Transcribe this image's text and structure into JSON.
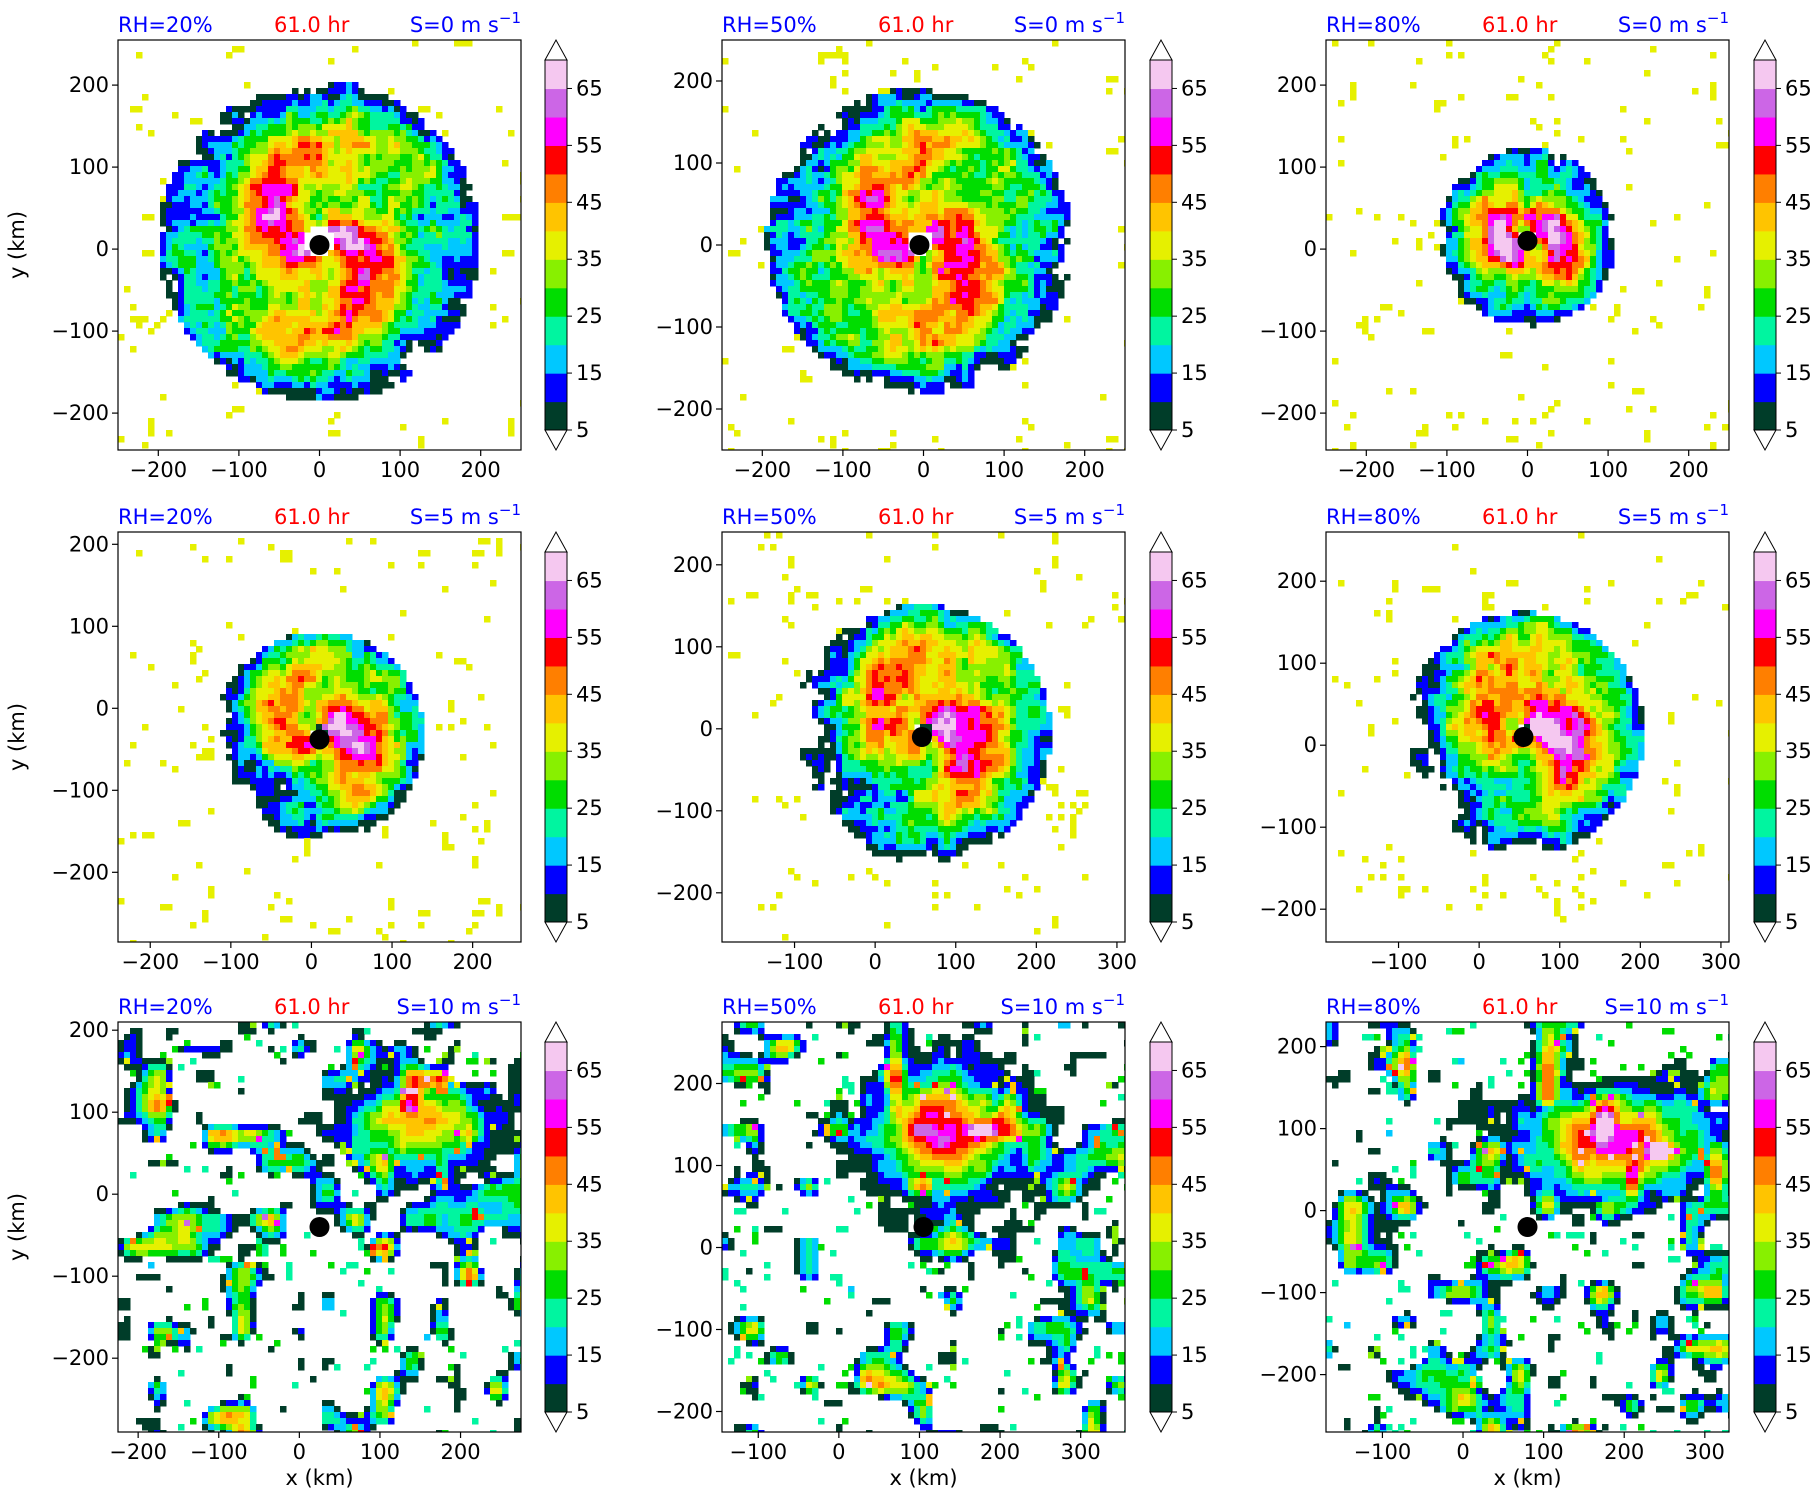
{
  "colorbar": {
    "levels": [
      5,
      10,
      15,
      20,
      25,
      30,
      35,
      40,
      45,
      50,
      55,
      60,
      65,
      70
    ],
    "tick_labels": [
      "5",
      "15",
      "25",
      "35",
      "45",
      "55",
      "65"
    ],
    "colors": [
      "#003d29",
      "#0000ff",
      "#00c8ff",
      "#00f5a0",
      "#00dd00",
      "#88f000",
      "#e6f000",
      "#ffc400",
      "#ff7f00",
      "#ff0000",
      "#ff00ff",
      "#cc66e6",
      "#f5c8f0"
    ]
  },
  "storm_marker_color": "#000000",
  "chart_data": [
    {
      "type": "heatmap",
      "rh_label": "RH=20%",
      "time_label": "61.0 hr",
      "shear_label": "S=0 m s",
      "shear_sup": "−1",
      "xlim": [
        -250,
        250
      ],
      "ylim": [
        -245,
        255
      ],
      "xticks": [
        -200,
        -100,
        0,
        100,
        200
      ],
      "yticks": [
        -200,
        -100,
        0,
        100,
        200
      ],
      "xtick_labels": [
        "−200",
        "−100",
        "0",
        "100",
        "200"
      ],
      "ytick_labels": [
        "−200",
        "−100",
        "0",
        "100",
        "200"
      ],
      "xlabel": "",
      "ylabel": "y (km)",
      "center": [
        0,
        5
      ],
      "core_extent": 200,
      "ring_radius": 0,
      "inner_radius": 18,
      "spiral": true
    },
    {
      "type": "heatmap",
      "rh_label": "RH=50%",
      "time_label": "61.0 hr",
      "shear_label": "S=0 m s",
      "shear_sup": "−1",
      "xlim": [
        -250,
        250
      ],
      "ylim": [
        -250,
        250
      ],
      "xticks": [
        -200,
        -100,
        0,
        100,
        200
      ],
      "yticks": [
        -200,
        -100,
        0,
        100,
        200
      ],
      "xtick_labels": [
        "−200",
        "−100",
        "0",
        "100",
        "200"
      ],
      "ytick_labels": [
        "−200",
        "−100",
        "0",
        "100",
        "200"
      ],
      "xlabel": "",
      "ylabel": "",
      "center": [
        -5,
        0
      ],
      "core_extent": 190,
      "ring_radius": 0,
      "inner_radius": 15,
      "spiral": true
    },
    {
      "type": "heatmap",
      "rh_label": "RH=80%",
      "time_label": "61.0 hr",
      "shear_label": "S=0 m s",
      "shear_sup": "−1",
      "xlim": [
        -250,
        250
      ],
      "ylim": [
        -245,
        255
      ],
      "xticks": [
        -200,
        -100,
        0,
        100,
        200
      ],
      "yticks": [
        -200,
        -100,
        0,
        100,
        200
      ],
      "xtick_labels": [
        "−200",
        "−100",
        "0",
        "100",
        "200"
      ],
      "ytick_labels": [
        "−200",
        "−100",
        "0",
        "100",
        "200"
      ],
      "xlabel": "",
      "ylabel": "",
      "center": [
        0,
        10
      ],
      "core_extent": 110,
      "ring_radius": 35,
      "inner_radius": 10,
      "spiral": true
    },
    {
      "type": "heatmap",
      "rh_label": "RH=20%",
      "time_label": "61.0 hr",
      "shear_label": "S=5 m s",
      "shear_sup": "−1",
      "xlim": [
        -240,
        260
      ],
      "ylim": [
        -285,
        215
      ],
      "xticks": [
        -200,
        -100,
        0,
        100,
        200
      ],
      "yticks": [
        -200,
        -100,
        0,
        100,
        200
      ],
      "xtick_labels": [
        "−200",
        "−100",
        "0",
        "100",
        "200"
      ],
      "ytick_labels": [
        "−200",
        "−100",
        "0",
        "100",
        "200"
      ],
      "xlabel": "",
      "ylabel": "y (km)",
      "center": [
        10,
        -38
      ],
      "core_extent": 130,
      "ring_radius": 0,
      "inner_radius": 12,
      "spiral": true
    },
    {
      "type": "heatmap",
      "rh_label": "RH=50%",
      "time_label": "61.0 hr",
      "shear_label": "S=5 m s",
      "shear_sup": "−1",
      "xlim": [
        -190,
        310
      ],
      "ylim": [
        -260,
        240
      ],
      "xticks": [
        -100,
        0,
        100,
        200,
        300
      ],
      "yticks": [
        -200,
        -100,
        0,
        100,
        200
      ],
      "xtick_labels": [
        "−100",
        "0",
        "100",
        "200",
        "300"
      ],
      "ytick_labels": [
        "−200",
        "−100",
        "0",
        "100",
        "200"
      ],
      "xlabel": "",
      "ylabel": "",
      "center": [
        58,
        -10
      ],
      "core_extent": 160,
      "ring_radius": 0,
      "inner_radius": 12,
      "spiral": true
    },
    {
      "type": "heatmap",
      "rh_label": "RH=80%",
      "time_label": "61.0 hr",
      "shear_label": "S=5 m s",
      "shear_sup": "−1",
      "xlim": [
        -190,
        310
      ],
      "ylim": [
        -240,
        260
      ],
      "xticks": [
        -100,
        0,
        100,
        200,
        300
      ],
      "yticks": [
        -200,
        -100,
        0,
        100,
        200
      ],
      "xtick_labels": [
        "−100",
        "0",
        "100",
        "200",
        "300"
      ],
      "ytick_labels": [
        "−200",
        "−100",
        "0",
        "100",
        "200"
      ],
      "xlabel": "",
      "ylabel": "",
      "center": [
        55,
        10
      ],
      "core_extent": 150,
      "ring_radius": 0,
      "inner_radius": 10,
      "spiral": true
    },
    {
      "type": "heatmap",
      "rh_label": "RH=20%",
      "time_label": "61.0 hr",
      "shear_label": "S=10 m s",
      "shear_sup": "−1",
      "xlim": [
        -225,
        275
      ],
      "ylim": [
        -290,
        210
      ],
      "xticks": [
        -200,
        -100,
        0,
        100,
        200
      ],
      "yticks": [
        -200,
        -100,
        0,
        100,
        200
      ],
      "xtick_labels": [
        "−200",
        "−100",
        "0",
        "100",
        "200"
      ],
      "ytick_labels": [
        "−200",
        "−100",
        "0",
        "100",
        "200"
      ],
      "xlabel": "x (km)",
      "ylabel": "y (km)",
      "center": [
        25,
        -40
      ],
      "core_extent": 0,
      "ring_radius": 0,
      "inner_radius": 0,
      "spiral": false
    },
    {
      "type": "heatmap",
      "rh_label": "RH=50%",
      "time_label": "61.0 hr",
      "shear_label": "S=10 m s",
      "shear_sup": "−1",
      "xlim": [
        -145,
        355
      ],
      "ylim": [
        -225,
        275
      ],
      "xticks": [
        -100,
        0,
        100,
        200,
        300
      ],
      "yticks": [
        -200,
        -100,
        0,
        100,
        200
      ],
      "xtick_labels": [
        "−100",
        "0",
        "100",
        "200",
        "300"
      ],
      "ytick_labels": [
        "−200",
        "−100",
        "0",
        "100",
        "200"
      ],
      "xlabel": "x (km)",
      "ylabel": "",
      "center": [
        105,
        25
      ],
      "core_extent": 0,
      "ring_radius": 0,
      "inner_radius": 0,
      "spiral": false
    },
    {
      "type": "heatmap",
      "rh_label": "RH=80%",
      "time_label": "61.0 hr",
      "shear_label": "S=10 m s",
      "shear_sup": "−1",
      "xlim": [
        -170,
        330
      ],
      "ylim": [
        -270,
        230
      ],
      "xticks": [
        -100,
        0,
        100,
        200,
        300
      ],
      "yticks": [
        -200,
        -100,
        0,
        100,
        200
      ],
      "xtick_labels": [
        "−100",
        "0",
        "100",
        "200",
        "300"
      ],
      "ytick_labels": [
        "−200",
        "−100",
        "0",
        "100",
        "200"
      ],
      "xlabel": "x (km)",
      "ylabel": "",
      "center": [
        80,
        -20
      ],
      "core_extent": 0,
      "ring_radius": 0,
      "inner_radius": 0,
      "spiral": false
    }
  ]
}
